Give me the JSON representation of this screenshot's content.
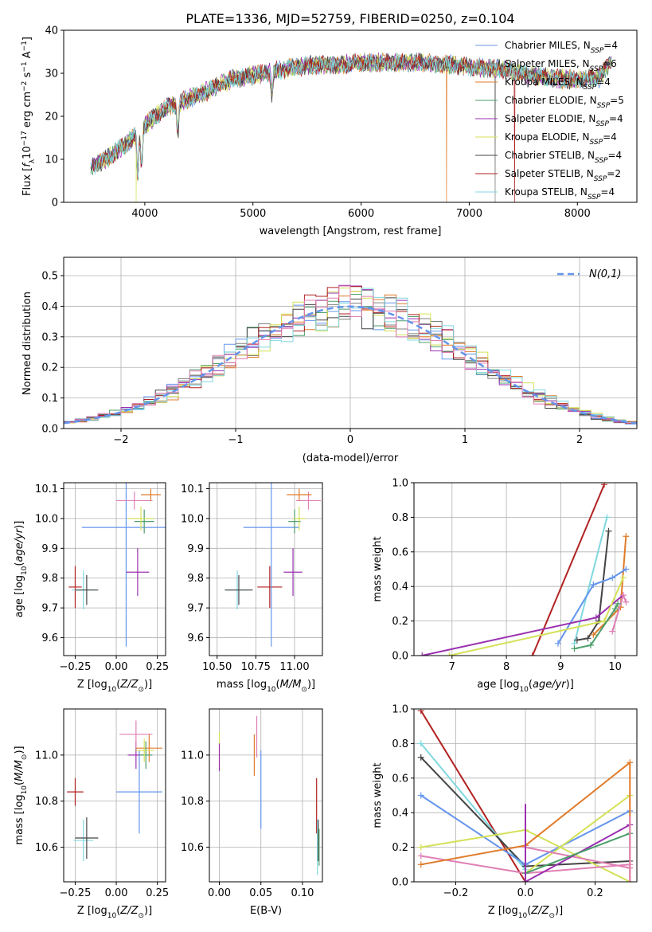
{
  "figure": {
    "title": "PLATE=1336, MJD=52759, FIBERID=0250, z=0.104"
  },
  "colors": {
    "chabrier_miles": "#6495ED",
    "salpeter_miles": "#808080",
    "kroupa_miles": "#E07B2A",
    "chabrier_elodie": "#4C9E6B",
    "salpeter_elodie": "#9A30B0",
    "kroupa_elodie": "#D4E157",
    "chabrier_stelib": "#444444",
    "salpeter_stelib": "#B22222",
    "kroupa_stelib": "#7FD8E0",
    "pink": "#E07FB4",
    "normal_curve": "#6495ED"
  },
  "chart_data": [
    {
      "id": "spectrum",
      "type": "line",
      "xlabel": "wavelength [Angstrom, rest frame]",
      "ylabel": "Flux [f_λ 10^-17 erg cm^-2 s^-1 A^-1]",
      "xlim": [
        3250,
        8550
      ],
      "ylim": [
        0,
        40
      ],
      "xticks": [
        4000,
        5000,
        6000,
        7000,
        8000
      ],
      "yticks": [
        0,
        10,
        20,
        30,
        40
      ],
      "legend_position": "right",
      "legend": [
        {
          "key": "chabrier_miles",
          "label": "Chabrier MILES, N",
          "sub": "SSP",
          "tail": "=4"
        },
        {
          "key": "salpeter_miles",
          "label": "Salpeter MILES, N",
          "sub": "SSP",
          "tail": "=6"
        },
        {
          "key": "kroupa_miles",
          "label": "Kroupa MILES, N",
          "sub": "SSP",
          "tail": "=4"
        },
        {
          "key": "chabrier_elodie",
          "label": "Chabrier ELODIE, N",
          "sub": "SSP",
          "tail": "=5"
        },
        {
          "key": "salpeter_elodie",
          "label": "Salpeter ELODIE, N",
          "sub": "SSP",
          "tail": "=4"
        },
        {
          "key": "kroupa_elodie",
          "label": "Kroupa ELODIE, N",
          "sub": "SSP",
          "tail": "=4"
        },
        {
          "key": "chabrier_stelib",
          "label": "Chabrier STELIB, N",
          "sub": "SSP",
          "tail": "=4"
        },
        {
          "key": "salpeter_stelib",
          "label": "Salpeter STELIB, N",
          "sub": "SSP",
          "tail": "=2"
        },
        {
          "key": "kroupa_stelib",
          "label": "Kroupa STELIB, N",
          "sub": "SSP",
          "tail": "=4"
        }
      ],
      "envelope": {
        "x": [
          3500,
          3700,
          3850,
          4000,
          4200,
          4500,
          4800,
          5000,
          5200,
          5400,
          5600,
          5800,
          6000,
          6200,
          6500,
          6800,
          7000,
          7300,
          7600,
          7900,
          8200,
          8320
        ],
        "y": [
          8,
          11,
          14,
          18,
          22,
          25,
          28.5,
          29.5,
          30.5,
          31.5,
          32,
          32,
          32.5,
          32.5,
          32.5,
          32,
          31.5,
          31,
          29.5,
          28.5,
          29,
          33
        ]
      },
      "absorption_features": [
        {
          "x": 3935,
          "depth": 10
        },
        {
          "x": 3970,
          "depth": 9
        },
        {
          "x": 4305,
          "depth": 7
        },
        {
          "x": 5175,
          "depth": 5
        }
      ],
      "drops": [
        {
          "series": "kroupa_miles",
          "x": 3490,
          "y": 0
        },
        {
          "series": "kroupa_elodie",
          "x": 3920,
          "y": 0
        },
        {
          "series": "kroupa_miles",
          "x": 6790,
          "y": 0
        },
        {
          "series": "salpeter_miles",
          "x": 7240,
          "y": 0
        },
        {
          "series": "salpeter_stelib",
          "x": 7420,
          "y": 0
        }
      ]
    },
    {
      "id": "residual_hist",
      "type": "step-histogram",
      "xlabel": "(data-model)/error",
      "ylabel": "Normed distribution",
      "xlim": [
        -2.5,
        2.5
      ],
      "ylim": [
        0,
        0.56
      ],
      "xticks": [
        -2,
        -1,
        0,
        1,
        2
      ],
      "yticks": [
        0,
        0.1,
        0.2,
        0.3,
        0.4,
        0.5
      ],
      "grid": true,
      "bin_width": 0.1,
      "legend_position": "top-right",
      "curve_label": "N(0,1)",
      "curve": "normal(0,1)"
    },
    {
      "id": "age_vs_Z",
      "type": "errorbar",
      "xlabel": "Z [log10(Z/Z⊙)]",
      "ylabel": "age  [log10(age/yr)]",
      "xlim": [
        -0.32,
        0.3
      ],
      "ylim": [
        9.54,
        10.12
      ],
      "xticks": [
        -0.25,
        0.0,
        0.25
      ],
      "yticks": [
        9.6,
        9.7,
        9.8,
        9.9,
        10.0,
        10.1
      ],
      "grid": true,
      "points": [
        {
          "series": "salpeter_stelib",
          "x": -0.25,
          "xerr": 0.04,
          "y": 9.77,
          "yerr": 0.07
        },
        {
          "series": "kroupa_stelib",
          "x": -0.2,
          "xerr": 0.07,
          "y": 9.76,
          "yerr": 0.065
        },
        {
          "series": "chabrier_stelib",
          "x": -0.18,
          "xerr": 0.07,
          "y": 9.76,
          "yerr": 0.05
        },
        {
          "series": "chabrier_miles",
          "x": 0.06,
          "xerr": 0.27,
          "y": 9.97,
          "yerr": 0.4
        },
        {
          "series": "salpeter_elodie",
          "x": 0.13,
          "xerr": 0.07,
          "y": 9.82,
          "yerr": 0.08
        },
        {
          "series": "pink",
          "x": 0.11,
          "xerr": 0.11,
          "y": 10.06,
          "yerr": 0.03
        },
        {
          "series": "kroupa_miles",
          "x": 0.21,
          "xerr": 0.06,
          "y": 10.08,
          "yerr": 0.02
        },
        {
          "series": "chabrier_elodie",
          "x": 0.17,
          "xerr": 0.06,
          "y": 9.99,
          "yerr": 0.04
        },
        {
          "series": "kroupa_elodie",
          "x": 0.15,
          "xerr": 0.08,
          "y": 10.0,
          "yerr": 0.04
        }
      ]
    },
    {
      "id": "age_vs_mass",
      "type": "errorbar",
      "xlabel": "mass [log10(M/M⊙)]",
      "ylabel": "",
      "xlim": [
        10.45,
        11.18
      ],
      "ylim": [
        9.54,
        10.12
      ],
      "xticks": [
        10.5,
        10.75,
        11.0
      ],
      "yticks": [
        9.6,
        9.7,
        9.8,
        9.9,
        10.0,
        10.1
      ],
      "grid": true,
      "points": [
        {
          "series": "salpeter_stelib",
          "x": 10.84,
          "xerr": 0.08,
          "y": 9.77,
          "yerr": 0.07
        },
        {
          "series": "kroupa_stelib",
          "x": 10.63,
          "xerr": 0.08,
          "y": 9.76,
          "yerr": 0.065
        },
        {
          "series": "chabrier_stelib",
          "x": 10.64,
          "xerr": 0.09,
          "y": 9.76,
          "yerr": 0.05
        },
        {
          "series": "chabrier_miles",
          "x": 10.85,
          "xerr": 0.18,
          "y": 9.97,
          "yerr": 0.4
        },
        {
          "series": "salpeter_elodie",
          "x": 10.99,
          "xerr": 0.06,
          "y": 9.82,
          "yerr": 0.08
        },
        {
          "series": "pink",
          "x": 11.09,
          "xerr": 0.08,
          "y": 10.06,
          "yerr": 0.03
        },
        {
          "series": "kroupa_miles",
          "x": 11.03,
          "xerr": 0.08,
          "y": 10.08,
          "yerr": 0.02
        },
        {
          "series": "chabrier_elodie",
          "x": 11.0,
          "xerr": 0.04,
          "y": 9.99,
          "yerr": 0.04
        },
        {
          "series": "kroupa_elodie",
          "x": 11.03,
          "xerr": 0.04,
          "y": 10.0,
          "yerr": 0.04
        }
      ]
    },
    {
      "id": "weight_vs_age",
      "type": "line",
      "xlabel": "age  [log10(age/yr)]",
      "ylabel": "mass weight",
      "xlim": [
        6.3,
        10.4
      ],
      "ylim": [
        0,
        1.0
      ],
      "xticks": [
        7,
        8,
        9,
        10
      ],
      "yticks": [
        0,
        0.2,
        0.4,
        0.6,
        0.8,
        1.0
      ],
      "grid": true,
      "series": [
        {
          "series": "salpeter_stelib",
          "x": [
            8.48,
            9.8
          ],
          "y": [
            0.0,
            0.99
          ]
        },
        {
          "series": "kroupa_stelib",
          "x": [
            9.25,
            9.85
          ],
          "y": [
            0.07,
            0.8
          ]
        },
        {
          "series": "chabrier_stelib",
          "x": [
            9.3,
            9.5,
            9.7,
            9.88
          ],
          "y": [
            0.09,
            0.1,
            0.2,
            0.72
          ]
        },
        {
          "series": "kroupa_miles",
          "x": [
            9.6,
            10.1,
            10.2
          ],
          "y": [
            0.12,
            0.28,
            0.69
          ]
        },
        {
          "series": "chabrier_miles",
          "x": [
            8.95,
            9.6,
            9.95,
            10.2
          ],
          "y": [
            0.07,
            0.41,
            0.45,
            0.5
          ]
        },
        {
          "series": "salpeter_elodie",
          "x": [
            6.45,
            9.65,
            10.15
          ],
          "y": [
            0.0,
            0.22,
            0.35
          ]
        },
        {
          "series": "kroupa_elodie",
          "x": [
            6.95,
            9.8,
            10.15
          ],
          "y": [
            0.0,
            0.2,
            0.45
          ]
        },
        {
          "series": "pink",
          "x": [
            9.95,
            10.15,
            10.2
          ],
          "y": [
            0.14,
            0.35,
            0.31
          ]
        },
        {
          "series": "chabrier_elodie",
          "x": [
            9.25,
            9.55,
            10.0,
            10.05
          ],
          "y": [
            0.04,
            0.06,
            0.27,
            0.3
          ]
        }
      ]
    },
    {
      "id": "mass_vs_Z",
      "type": "errorbar",
      "xlabel": "Z [log10(Z/Z⊙)]",
      "ylabel": "mass [log10(M/M⊙)]",
      "xlim": [
        -0.32,
        0.3
      ],
      "ylim": [
        10.45,
        11.2
      ],
      "xticks": [
        -0.25,
        0.0,
        0.25
      ],
      "yticks": [
        10.6,
        10.8,
        11.0
      ],
      "grid": true,
      "points": [
        {
          "series": "salpeter_stelib",
          "x": -0.25,
          "xerr": 0.05,
          "y": 10.84,
          "yerr": 0.06
        },
        {
          "series": "kroupa_stelib",
          "x": -0.2,
          "xerr": 0.06,
          "y": 10.63,
          "yerr": 0.09
        },
        {
          "series": "chabrier_stelib",
          "x": -0.18,
          "xerr": 0.07,
          "y": 10.64,
          "yerr": 0.09
        },
        {
          "series": "chabrier_miles",
          "x": 0.14,
          "xerr": 0.14,
          "y": 10.84,
          "yerr": 0.18
        },
        {
          "series": "salpeter_elodie",
          "x": 0.12,
          "xerr": 0.05,
          "y": 11.0,
          "yerr": 0.06
        },
        {
          "series": "pink",
          "x": 0.12,
          "xerr": 0.1,
          "y": 11.09,
          "yerr": 0.06
        },
        {
          "series": "kroupa_miles",
          "x": 0.2,
          "xerr": 0.08,
          "y": 11.03,
          "yerr": 0.06
        },
        {
          "series": "chabrier_elodie",
          "x": 0.18,
          "xerr": 0.04,
          "y": 11.0,
          "yerr": 0.06
        },
        {
          "series": "kroupa_elodie",
          "x": 0.17,
          "xerr": 0.06,
          "y": 11.02,
          "yerr": 0.05
        }
      ]
    },
    {
      "id": "mass_vs_ebv",
      "type": "errorbar",
      "xlabel": "E(B-V)",
      "ylabel": "",
      "xlim": [
        -0.012,
        0.124
      ],
      "ylim": [
        10.45,
        11.2
      ],
      "xticks": [
        0.0,
        0.05,
        0.1
      ],
      "yticks": [
        10.6,
        10.8,
        11.0
      ],
      "grid": true,
      "points": [
        {
          "series": "kroupa_elodie",
          "x": 0.0,
          "xerr": 0.0,
          "y": 11.02,
          "yerr": 0.08
        },
        {
          "series": "salpeter_elodie",
          "x": 0.0,
          "xerr": 0.0,
          "y": 10.99,
          "yerr": 0.06
        },
        {
          "series": "kroupa_miles",
          "x": 0.042,
          "xerr": 0.0,
          "y": 11.0,
          "yerr": 0.09
        },
        {
          "series": "pink",
          "x": 0.045,
          "xerr": 0.0,
          "y": 11.08,
          "yerr": 0.09
        },
        {
          "series": "chabrier_miles",
          "x": 0.05,
          "xerr": 0.0,
          "y": 10.85,
          "yerr": 0.17
        },
        {
          "series": "salpeter_stelib",
          "x": 0.117,
          "xerr": 0.0,
          "y": 10.78,
          "yerr": 0.12
        },
        {
          "series": "kroupa_stelib",
          "x": 0.118,
          "xerr": 0.0,
          "y": 10.6,
          "yerr": 0.12
        },
        {
          "series": "chabrier_stelib",
          "x": 0.119,
          "xerr": 0.0,
          "y": 10.63,
          "yerr": 0.09
        },
        {
          "series": "chabrier_elodie",
          "x": 0.12,
          "xerr": 0.0,
          "y": 10.6,
          "yerr": 0.08
        }
      ]
    },
    {
      "id": "weight_vs_Z",
      "type": "line",
      "xlabel": "Z [log10(Z/Z⊙)]",
      "ylabel": "mass weight",
      "xlim": [
        -0.32,
        0.32
      ],
      "ylim": [
        0,
        1.0
      ],
      "xticks": [
        -0.2,
        0.0,
        0.2
      ],
      "yticks": [
        0,
        0.2,
        0.4,
        0.6,
        0.8,
        1.0
      ],
      "grid": true,
      "series": [
        {
          "series": "salpeter_stelib",
          "x": [
            -0.3,
            0.0
          ],
          "y": [
            0.99,
            0.0
          ]
        },
        {
          "series": "kroupa_stelib",
          "x": [
            -0.3,
            0.0
          ],
          "y": [
            0.8,
            0.07
          ]
        },
        {
          "series": "chabrier_stelib",
          "x": [
            -0.3,
            0.0,
            0.3
          ],
          "y": [
            0.72,
            0.09,
            0.12
          ]
        },
        {
          "series": "chabrier_miles",
          "x": [
            -0.3,
            0.0,
            0.3
          ],
          "y": [
            0.5,
            0.1,
            0.41
          ]
        },
        {
          "series": "kroupa_elodie",
          "x": [
            -0.3,
            0.0,
            0.3
          ],
          "y": [
            0.2,
            0.3,
            0.0
          ]
        },
        {
          "series": "kroupa_elodie",
          "x": [
            0.0,
            0.3
          ],
          "y": [
            0.05,
            0.5
          ]
        },
        {
          "series": "pink",
          "x": [
            -0.3,
            0.0,
            0.3
          ],
          "y": [
            0.15,
            0.05,
            0.1
          ]
        },
        {
          "series": "pink",
          "x": [
            0.0,
            0.3
          ],
          "y": [
            0.2,
            0.08
          ]
        },
        {
          "series": "kroupa_miles",
          "x": [
            -0.3,
            0.0,
            0.3
          ],
          "y": [
            0.1,
            0.21,
            0.69
          ]
        },
        {
          "series": "salpeter_elodie",
          "x": [
            0.0,
            0.3
          ],
          "y": [
            0.0,
            0.33
          ]
        },
        {
          "series": "chabrier_elodie",
          "x": [
            0.0,
            0.3
          ],
          "y": [
            0.05,
            0.28
          ]
        }
      ],
      "verticals": [
        {
          "series": "salpeter_elodie",
          "x": 0.0,
          "y0": 0.0,
          "y1": 0.45
        },
        {
          "series": "kroupa_miles",
          "x": 0.3,
          "y0": 0.0,
          "y1": 0.69
        },
        {
          "series": "pink",
          "x": 0.3,
          "y0": 0.0,
          "y1": 0.38
        }
      ]
    }
  ]
}
